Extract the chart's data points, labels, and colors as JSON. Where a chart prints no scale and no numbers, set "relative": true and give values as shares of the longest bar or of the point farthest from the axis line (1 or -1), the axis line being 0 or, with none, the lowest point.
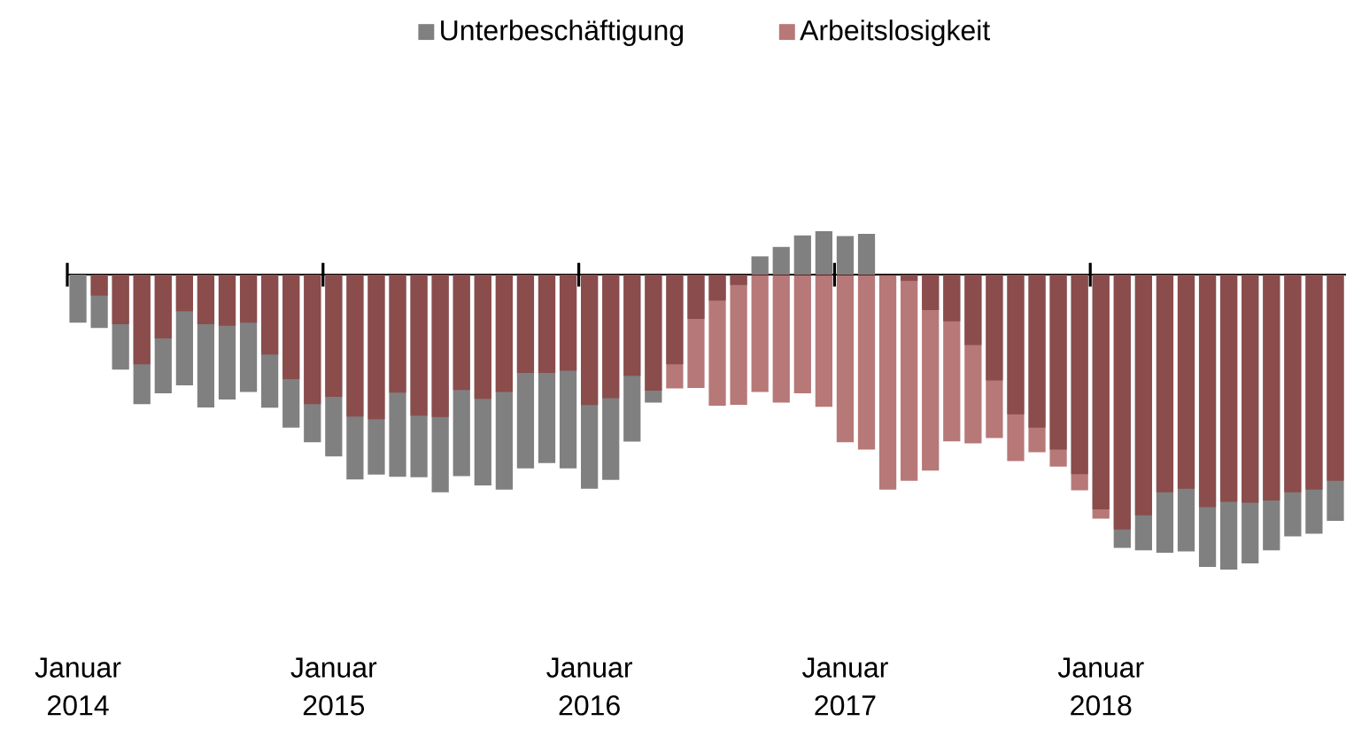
{
  "chart_data": {
    "type": "bar",
    "relative": true,
    "legend": "top",
    "categories": [
      "Januar 2014",
      null,
      null,
      null,
      null,
      null,
      null,
      null,
      null,
      null,
      null,
      null,
      "Januar 2015",
      null,
      null,
      null,
      null,
      null,
      null,
      null,
      null,
      null,
      null,
      null,
      "Januar 2016",
      null,
      null,
      null,
      null,
      null,
      null,
      null,
      null,
      null,
      null,
      null,
      "Januar 2017",
      null,
      null,
      null,
      null,
      null,
      null,
      null,
      null,
      null,
      null,
      null,
      "Januar 2018",
      null,
      null,
      null,
      null,
      null,
      null,
      null,
      null,
      null,
      null,
      null
    ],
    "series": [
      {
        "name": "Unterbeschäftigung",
        "color": "#808080",
        "values": [
          -0.163,
          -0.181,
          -0.322,
          -0.439,
          -0.402,
          -0.375,
          -0.45,
          -0.423,
          -0.398,
          -0.451,
          -0.519,
          -0.568,
          -0.616,
          -0.694,
          -0.678,
          -0.685,
          -0.687,
          -0.738,
          -0.683,
          -0.715,
          -0.729,
          -0.657,
          -0.639,
          -0.657,
          -0.726,
          -0.696,
          -0.566,
          -0.434,
          -0.304,
          -0.15,
          -0.088,
          -0.035,
          0.062,
          0.094,
          0.133,
          0.147,
          0.131,
          0.138,
          0,
          -0.021,
          -0.12,
          -0.158,
          -0.239,
          -0.359,
          -0.474,
          -0.519,
          -0.593,
          -0.676,
          -0.796,
          -0.926,
          -0.935,
          -0.943,
          -0.938,
          -0.991,
          -1,
          -0.979,
          -0.935,
          -0.887,
          -0.878,
          -0.835
        ]
      },
      {
        "name": "Arbeitslosigkeit",
        "color": "#913030",
        "values": [
          0,
          -0.071,
          -0.168,
          -0.304,
          -0.216,
          -0.124,
          -0.168,
          -0.173,
          -0.163,
          -0.271,
          -0.354,
          -0.439,
          -0.414,
          -0.481,
          -0.49,
          -0.4,
          -0.478,
          -0.483,
          -0.391,
          -0.421,
          -0.398,
          -0.333,
          -0.333,
          -0.326,
          -0.442,
          -0.419,
          -0.343,
          -0.393,
          -0.386,
          -0.384,
          -0.444,
          -0.441,
          -0.398,
          -0.434,
          -0.402,
          -0.448,
          -0.568,
          -0.593,
          -0.729,
          -0.699,
          -0.664,
          -0.565,
          -0.572,
          -0.554,
          -0.632,
          -0.602,
          -0.651,
          -0.731,
          -0.827,
          -0.864,
          -0.816,
          -0.738,
          -0.726,
          -0.788,
          -0.77,
          -0.773,
          -0.766,
          -0.738,
          -0.729,
          -0.699
        ]
      }
    ]
  }
}
